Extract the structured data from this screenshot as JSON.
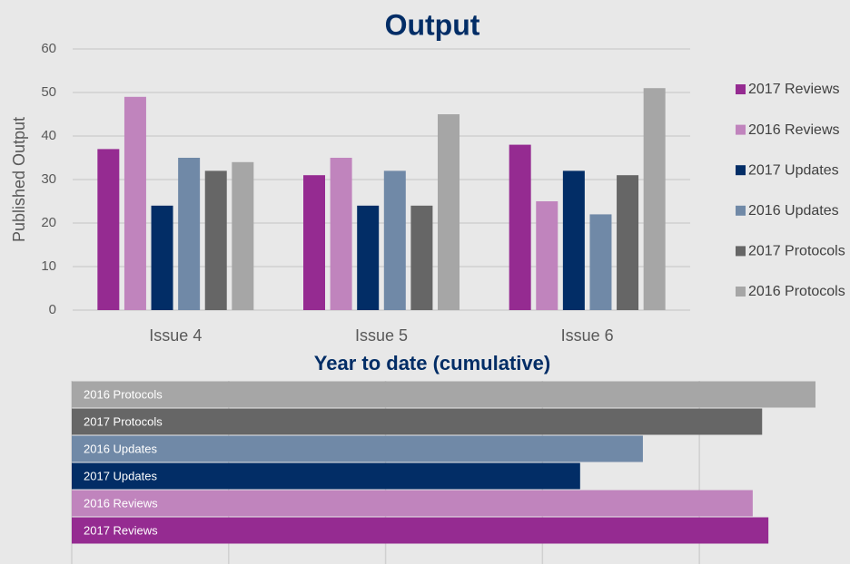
{
  "chart_data": [
    {
      "type": "bar",
      "title": "Output",
      "ylabel": "Published Output",
      "categories": [
        "Issue 4",
        "Issue 5",
        "Issue 6"
      ],
      "series": [
        {
          "name": "2017 Reviews",
          "color": "#952b91",
          "values": [
            37,
            31,
            38
          ]
        },
        {
          "name": "2016 Reviews",
          "color": "#c084bd",
          "values": [
            49,
            35,
            25
          ]
        },
        {
          "name": "2017 Updates",
          "color": "#022d66",
          "values": [
            24,
            24,
            32
          ]
        },
        {
          "name": "2016 Updates",
          "color": "#7089a7",
          "values": [
            35,
            32,
            22
          ]
        },
        {
          "name": "2017 Protocols",
          "color": "#666666",
          "values": [
            32,
            24,
            31
          ]
        },
        {
          "name": "2016 Protocols",
          "color": "#a6a6a6",
          "values": [
            34,
            45,
            51
          ]
        }
      ],
      "ylim": [
        0,
        60
      ],
      "yticks": [
        0,
        10,
        20,
        30,
        40,
        50,
        60
      ],
      "grid": true,
      "legend": "right"
    },
    {
      "type": "barh",
      "title": "Year to date (cumulative)",
      "categories": [
        "2016 Protocols",
        "2017 Protocols",
        "2016 Updates",
        "2017 Updates",
        "2016 Reviews",
        "2017 Reviews"
      ],
      "values": [
        237,
        220,
        182,
        162,
        217,
        222
      ],
      "colors": [
        "#a6a6a6",
        "#666666",
        "#7089a7",
        "#022d66",
        "#c084bd",
        "#952b91"
      ],
      "xlim": [
        0,
        248
      ],
      "xticks": [
        0,
        50,
        100,
        150,
        200
      ],
      "grid": true
    }
  ]
}
